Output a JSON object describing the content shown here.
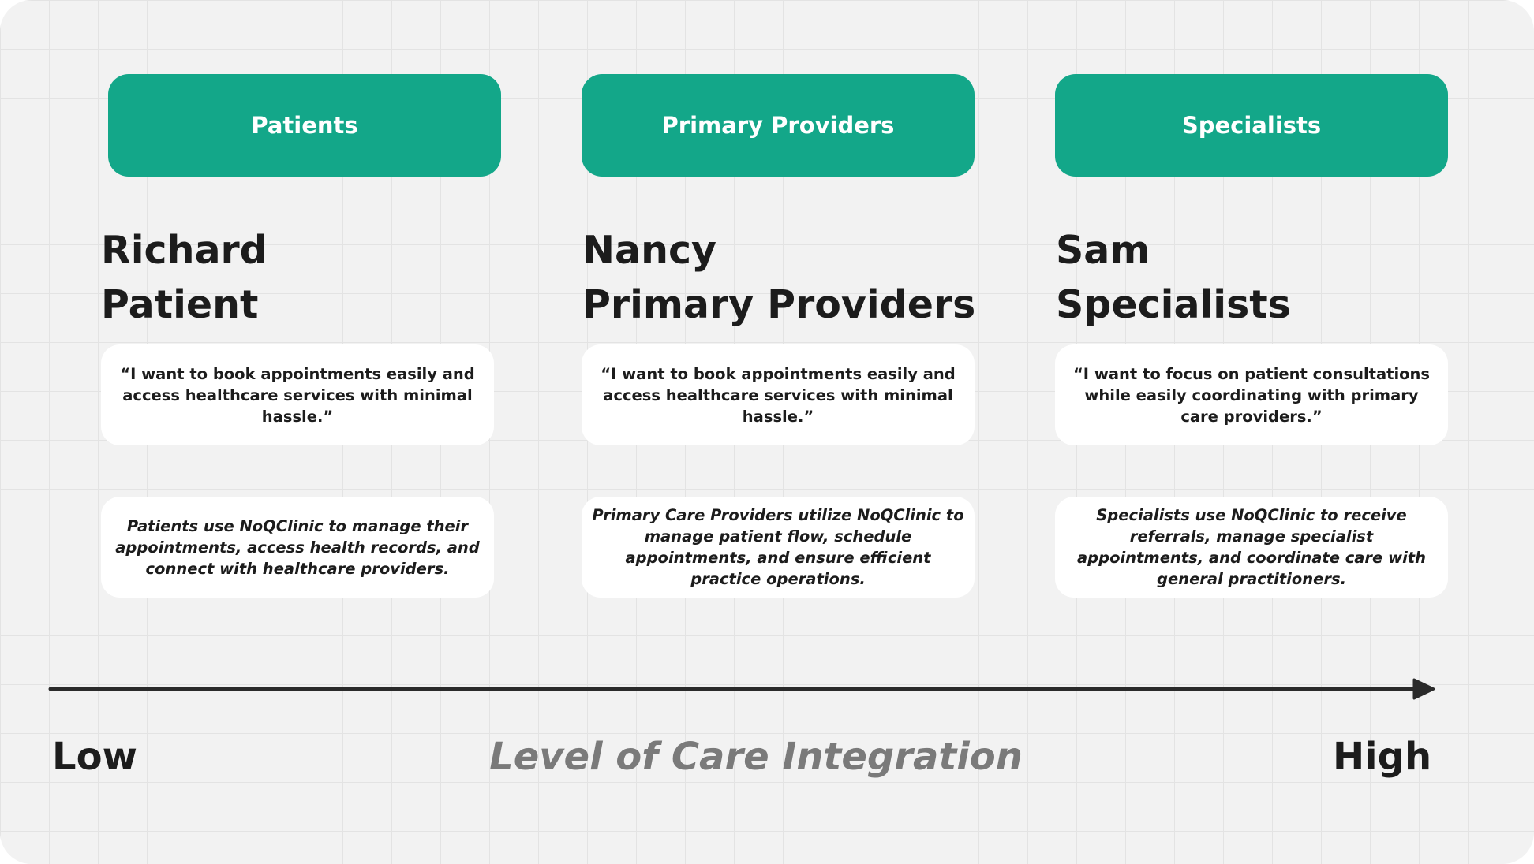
{
  "columns": [
    {
      "header": "Patients",
      "persona_name": "Richard",
      "persona_role": "Patient",
      "quote": "“I want to book appointments easily and access healthcare services with minimal hassle.”",
      "description": "Patients use NoQClinic to manage their appointments, access health records, and connect with healthcare providers."
    },
    {
      "header": "Primary Providers",
      "persona_name": "Nancy",
      "persona_role": "Primary Providers",
      "quote": "“I want to book appointments easily and access healthcare services with minimal hassle.”",
      "description": "Primary Care Providers utilize NoQClinic to manage patient flow, schedule appointments, and ensure efficient practice operations."
    },
    {
      "header": "Specialists",
      "persona_name": "Sam",
      "persona_role": "Specialists",
      "quote": "“I want to focus on patient consultations while easily coordinating with primary care providers.”",
      "description": "Specialists use NoQClinic to receive referrals, manage specialist appointments, and coordinate care with general practitioners."
    }
  ],
  "axis": {
    "low_label": "Low",
    "title": "Level of Care Integration",
    "high_label": "High"
  },
  "colors": {
    "accent": "#13a789",
    "background": "#f2f2f2",
    "text": "#1c1c1c",
    "axis_title": "#7a7a7a"
  }
}
